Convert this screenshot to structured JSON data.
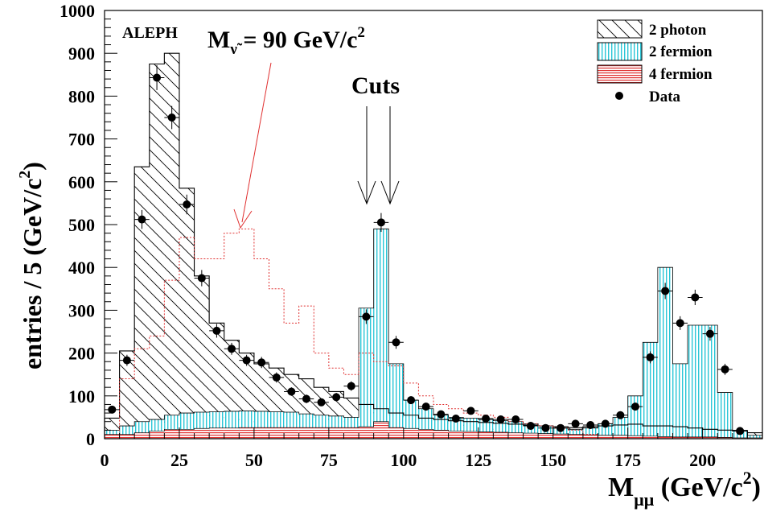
{
  "chart_data": {
    "type": "bar",
    "experiment": "ALEPH",
    "xlabel": {
      "main": "M",
      "sub": "μμ",
      "unit": " (GeV/c",
      "sup": "2",
      "close": ")"
    },
    "ylabel": {
      "main": "entries / 5 (GeV/c",
      "sup": "2",
      "close": ")"
    },
    "xlim": [
      0,
      220
    ],
    "ylim": [
      0,
      1000
    ],
    "xticks": [
      0,
      25,
      50,
      75,
      100,
      125,
      150,
      175,
      200
    ],
    "yticks": [
      0,
      100,
      200,
      300,
      400,
      500,
      600,
      700,
      800,
      900,
      1000
    ],
    "bin_width": 5,
    "x_bin_edges": [
      0,
      5,
      10,
      15,
      20,
      25,
      30,
      35,
      40,
      45,
      50,
      55,
      60,
      65,
      70,
      75,
      80,
      85,
      90,
      95,
      100,
      105,
      110,
      115,
      120,
      125,
      130,
      135,
      140,
      145,
      150,
      155,
      160,
      165,
      170,
      175,
      180,
      185,
      190,
      195,
      200,
      205,
      210,
      215,
      220
    ],
    "series": [
      {
        "name": "2 photon",
        "pattern": "diagonal-hatch",
        "color": "#000000",
        "values": [
          48,
          205,
          635,
          875,
          900,
          585,
          380,
          270,
          230,
          200,
          175,
          165,
          150,
          140,
          120,
          110,
          95,
          80,
          70,
          60,
          55,
          48,
          45,
          42,
          40,
          38,
          36,
          34,
          32,
          30,
          28,
          26,
          28,
          30,
          32,
          34,
          30,
          30,
          28,
          25,
          22,
          20,
          18,
          14
        ]
      },
      {
        "name": "2 fermion",
        "pattern": "vertical-lines",
        "color": "#29c5d6",
        "values": [
          20,
          30,
          40,
          45,
          55,
          60,
          62,
          63,
          64,
          65,
          64,
          63,
          62,
          58,
          55,
          53,
          50,
          305,
          490,
          175,
          90,
          70,
          55,
          50,
          48,
          45,
          42,
          40,
          35,
          30,
          25,
          22,
          25,
          35,
          50,
          100,
          225,
          400,
          175,
          265,
          265,
          108,
          20,
          8
        ]
      },
      {
        "name": "4 fermion",
        "pattern": "horizontal-lines",
        "color": "#e03030",
        "values": [
          10,
          10,
          14,
          18,
          22,
          22,
          24,
          25,
          25,
          26,
          26,
          26,
          26,
          26,
          26,
          26,
          26,
          28,
          40,
          26,
          24,
          22,
          20,
          18,
          17,
          16,
          15,
          14,
          13,
          12,
          11,
          10,
          9,
          8,
          8,
          7,
          6,
          5,
          4,
          4,
          4,
          3,
          2,
          2
        ]
      },
      {
        "name": "M_ν̃ = 90 GeV/c² signal",
        "style": "dotted",
        "color": "#e03030",
        "values": [
          0,
          140,
          210,
          240,
          370,
          470,
          420,
          420,
          480,
          490,
          420,
          350,
          270,
          310,
          200,
          165,
          150,
          200,
          180,
          170,
          130,
          100,
          80,
          70,
          60,
          55,
          50,
          40,
          35,
          30,
          25,
          20,
          10,
          0,
          0,
          0,
          0,
          0,
          0,
          0,
          0,
          0,
          0,
          0
        ]
      }
    ],
    "data_points": {
      "name": "Data",
      "x": [
        2.5,
        7.5,
        12.5,
        17.5,
        22.5,
        27.5,
        32.5,
        37.5,
        42.5,
        47.5,
        52.5,
        57.5,
        62.5,
        67.5,
        72.5,
        77.5,
        82.5,
        87.5,
        92.5,
        97.5,
        102.5,
        107.5,
        112.5,
        117.5,
        122.5,
        127.5,
        132.5,
        137.5,
        142.5,
        147.5,
        152.5,
        157.5,
        162.5,
        167.5,
        172.5,
        177.5,
        182.5,
        187.5,
        192.5,
        197.5,
        202.5,
        207.5,
        212.5
      ],
      "y": [
        68,
        183,
        512,
        843,
        750,
        547,
        375,
        252,
        210,
        183,
        178,
        143,
        110,
        93,
        85,
        97,
        123,
        285,
        505,
        225,
        90,
        75,
        57,
        47,
        65,
        47,
        45,
        45,
        30,
        25,
        25,
        35,
        32,
        35,
        55,
        75,
        190,
        345,
        270,
        330,
        245,
        162,
        18
      ],
      "yerr": [
        8,
        13,
        22,
        29,
        27,
        23,
        19,
        16,
        14,
        13,
        13,
        12,
        10,
        10,
        9,
        10,
        11,
        17,
        22,
        15,
        9,
        9,
        8,
        7,
        8,
        7,
        7,
        7,
        6,
        5,
        5,
        6,
        6,
        6,
        7,
        9,
        14,
        19,
        16,
        18,
        16,
        13,
        4
      ]
    },
    "legend": {
      "position": "top-right",
      "entries": [
        "2 photon",
        "2 fermion",
        "4 fermion",
        "Data"
      ]
    },
    "annotations": {
      "signal": {
        "main": "M",
        "sub": "ν̃",
        "rest": " = 90 GeV/c",
        "sup": "2",
        "target_x": 45,
        "target_y": 490
      },
      "cuts": {
        "label": "Cuts",
        "x": [
          87,
          93
        ]
      }
    }
  }
}
